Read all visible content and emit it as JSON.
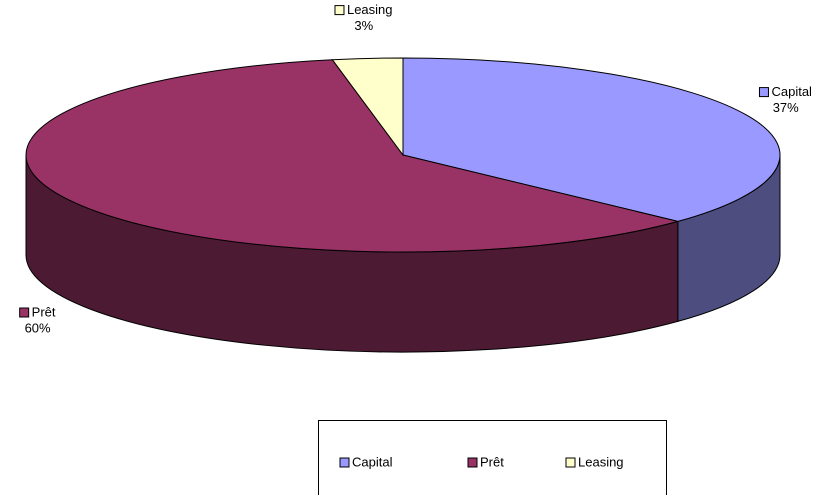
{
  "chart_data": {
    "type": "pie3d",
    "categories": [
      "Capital",
      "Prêt",
      "Leasing"
    ],
    "values": [
      37,
      60,
      3
    ],
    "value_labels": [
      "37%",
      "60%",
      "3%"
    ],
    "colors": [
      "#9999ff",
      "#993366",
      "#ffffcc"
    ],
    "legend": "bottom"
  }
}
